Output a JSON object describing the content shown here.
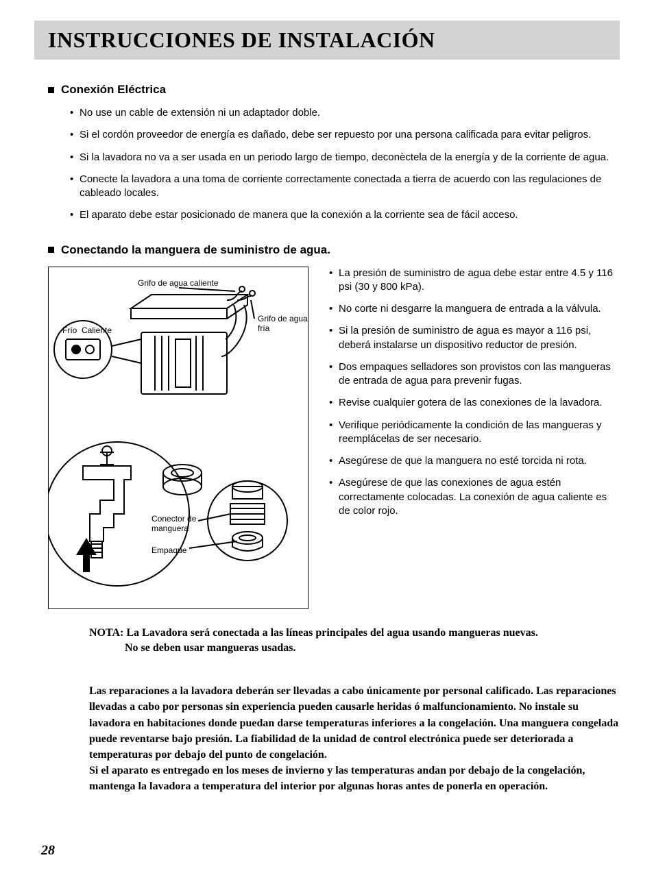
{
  "title": "INSTRUCCIONES DE INSTALACIÓN",
  "section1": {
    "heading": "Conexión Eléctrica",
    "items": [
      "No use un cable de extensión ni un adaptador doble.",
      "Si el cordón proveedor de energía es dañado, debe ser repuesto por una persona calificada para evitar peligros.",
      "Si la lavadora no va a ser usada en un periodo largo de tiempo, deconèctela de la energía y de la corriente de agua.",
      "Conecte la lavadora a una toma de corriente correctamente conectada a tierra de acuerdo con las regulaciones de cableado locales.",
      "El aparato debe estar posicionado de manera que la conexión a la corriente sea de fácil acceso."
    ]
  },
  "section2": {
    "heading": "Conectando la manguera de suministro de agua.",
    "diagram_labels": {
      "hot_tap": "Grifo de agua caliente",
      "cold_tap": "Grifo de agua fría",
      "cold": "Frío",
      "hot": "Caliente",
      "connector": "Conector de manguera",
      "packing": "Empaque"
    },
    "items": [
      "La presión de suministro de agua debe estar entre 4.5 y 116 psi (30 y 800 kPa).",
      "No corte ni desgarre la manguera de entrada a la válvula.",
      "Si la presión de suministro de agua es mayor a 116 psi, deberá instalarse un dispositivo reductor de presión.",
      "Dos empaques selladores son provistos con las mangueras de entrada de agua para prevenir fugas.",
      "Revise cualquier gotera de las conexiones de la lavadora.",
      "Verifique periódicamente la condición de las mangueras y reemplácelas de ser necesario.",
      "Asegúrese de que la manguera no esté torcida ni rota.",
      "Asegúrese de que las conexiones de agua estén correctamente colocadas. La conexión de agua caliente es de color rojo."
    ]
  },
  "nota": {
    "line1": "NOTA: La Lavadora será conectada a las líneas principales del agua usando mangueras nuevas.",
    "line2": "No se deben usar mangueras usadas."
  },
  "warning": "Las reparaciones a la lavadora deberán ser llevadas a cabo únicamente por personal calificado. Las reparaciones llevadas a cabo por personas sin experiencia pueden causarle heridas ó malfuncionamiento. No instale su lavadora en habitaciones donde puedan darse temperaturas inferiores a la congelación. Una manguera congelada puede reventarse bajo presión. La fiabilidad de la unidad de control electrónica puede ser deteriorada a temperaturas por debajo del punto de congelación.\nSi el aparato es entregado en los meses de invierno y las temperaturas andan por debajo de la congelación, mantenga la lavadora a temperatura del interior por algunas horas antes de ponerla en operación.",
  "page_number": "28"
}
